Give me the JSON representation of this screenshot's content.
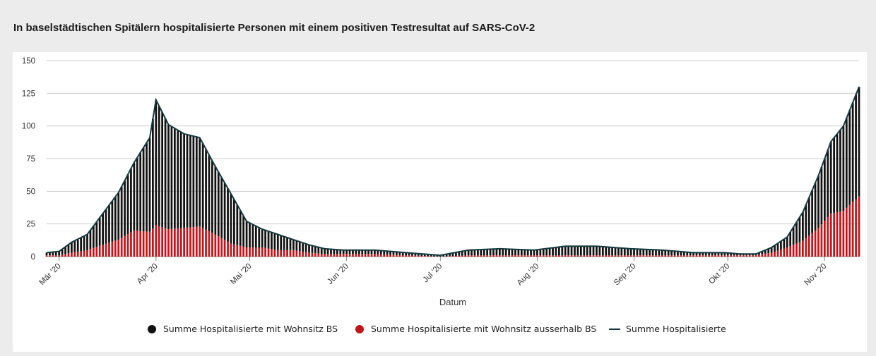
{
  "title": "In baselstädtischen Spitälern hospitalisierte Personen mit einem positiven Testresultat auf SARS-CoV-2",
  "chart_data": {
    "type": "bar",
    "stacked": true,
    "title": "In baselstädtischen Spitälern hospitalisierte Personen mit einem positiven Testresultat auf SARS-CoV-2",
    "xlabel": "Datum",
    "ylabel": "",
    "ylim": [
      0,
      150
    ],
    "yticks": [
      0,
      25,
      50,
      75,
      100,
      125,
      150
    ],
    "xlim": [
      "2020-02-26",
      "2020-11-12"
    ],
    "xticks": [
      {
        "date": "2020-03-01",
        "label": "Mär '20"
      },
      {
        "date": "2020-04-01",
        "label": "Apr '20"
      },
      {
        "date": "2020-05-01",
        "label": "Mai '20"
      },
      {
        "date": "2020-06-01",
        "label": "Jun '20"
      },
      {
        "date": "2020-07-01",
        "label": "Jul '20"
      },
      {
        "date": "2020-08-01",
        "label": "Aug '20"
      },
      {
        "date": "2020-09-01",
        "label": "Sep '20"
      },
      {
        "date": "2020-10-01",
        "label": "Okt '20"
      },
      {
        "date": "2020-11-01",
        "label": "Nov '20"
      }
    ],
    "grid": true,
    "legend_position": "bottom",
    "colors": {
      "bs": "#111111",
      "outside": "#c0151a",
      "total": "#15393f",
      "grid": "#cccccc"
    },
    "series": [
      {
        "name": "Summe Hospitalisierte mit Wohnsitz BS",
        "marker": "circle",
        "color": "#111111",
        "points": [
          [
            "2020-02-26",
            2
          ],
          [
            "2020-03-01",
            3
          ],
          [
            "2020-03-05",
            8
          ],
          [
            "2020-03-10",
            12
          ],
          [
            "2020-03-15",
            24
          ],
          [
            "2020-03-20",
            36
          ],
          [
            "2020-03-25",
            52
          ],
          [
            "2020-03-30",
            72
          ],
          [
            "2020-04-01",
            96
          ],
          [
            "2020-04-05",
            80
          ],
          [
            "2020-04-10",
            72
          ],
          [
            "2020-04-15",
            68
          ],
          [
            "2020-04-20",
            52
          ],
          [
            "2020-04-25",
            38
          ],
          [
            "2020-04-30",
            20
          ],
          [
            "2020-05-05",
            14
          ],
          [
            "2020-05-10",
            12
          ],
          [
            "2020-05-15",
            8
          ],
          [
            "2020-05-20",
            6
          ],
          [
            "2020-05-25",
            4
          ],
          [
            "2020-05-31",
            3
          ],
          [
            "2020-06-10",
            3
          ],
          [
            "2020-06-20",
            2
          ],
          [
            "2020-07-01",
            1
          ],
          [
            "2020-07-10",
            4
          ],
          [
            "2020-07-20",
            5
          ],
          [
            "2020-07-31",
            4
          ],
          [
            "2020-08-10",
            7
          ],
          [
            "2020-08-20",
            7
          ],
          [
            "2020-08-31",
            5
          ],
          [
            "2020-09-10",
            4
          ],
          [
            "2020-09-20",
            2
          ],
          [
            "2020-09-30",
            2
          ],
          [
            "2020-10-05",
            1
          ],
          [
            "2020-10-10",
            1
          ],
          [
            "2020-10-15",
            4
          ],
          [
            "2020-10-20",
            8
          ],
          [
            "2020-10-25",
            22
          ],
          [
            "2020-10-30",
            40
          ],
          [
            "2020-11-03",
            55
          ],
          [
            "2020-11-07",
            65
          ],
          [
            "2020-11-10",
            76
          ],
          [
            "2020-11-12",
            84
          ]
        ]
      },
      {
        "name": "Summe Hospitalisierte mit Wohnsitz ausserhalb BS",
        "marker": "circle",
        "color": "#c0151a",
        "points": [
          [
            "2020-02-26",
            1
          ],
          [
            "2020-03-01",
            1
          ],
          [
            "2020-03-05",
            3
          ],
          [
            "2020-03-10",
            5
          ],
          [
            "2020-03-15",
            9
          ],
          [
            "2020-03-20",
            13
          ],
          [
            "2020-03-25",
            20
          ],
          [
            "2020-03-30",
            19
          ],
          [
            "2020-04-01",
            24
          ],
          [
            "2020-04-05",
            21
          ],
          [
            "2020-04-10",
            22
          ],
          [
            "2020-04-15",
            23
          ],
          [
            "2020-04-20",
            17
          ],
          [
            "2020-04-25",
            10
          ],
          [
            "2020-04-30",
            7
          ],
          [
            "2020-05-05",
            7
          ],
          [
            "2020-05-10",
            5
          ],
          [
            "2020-05-15",
            5
          ],
          [
            "2020-05-20",
            3
          ],
          [
            "2020-05-25",
            2
          ],
          [
            "2020-05-31",
            2
          ],
          [
            "2020-06-10",
            2
          ],
          [
            "2020-06-20",
            1
          ],
          [
            "2020-07-01",
            0
          ],
          [
            "2020-07-10",
            1
          ],
          [
            "2020-07-20",
            1
          ],
          [
            "2020-07-31",
            1
          ],
          [
            "2020-08-10",
            1
          ],
          [
            "2020-08-20",
            1
          ],
          [
            "2020-08-31",
            1
          ],
          [
            "2020-09-10",
            1
          ],
          [
            "2020-09-20",
            1
          ],
          [
            "2020-09-30",
            1
          ],
          [
            "2020-10-05",
            1
          ],
          [
            "2020-10-10",
            1
          ],
          [
            "2020-10-15",
            3
          ],
          [
            "2020-10-20",
            7
          ],
          [
            "2020-10-25",
            12
          ],
          [
            "2020-10-30",
            22
          ],
          [
            "2020-11-03",
            33
          ],
          [
            "2020-11-07",
            35
          ],
          [
            "2020-11-10",
            42
          ],
          [
            "2020-11-12",
            46
          ]
        ]
      },
      {
        "name": "Summe Hospitalisierte",
        "marker": "line",
        "color": "#15393f",
        "points": [
          [
            "2020-02-26",
            3
          ],
          [
            "2020-03-01",
            4
          ],
          [
            "2020-03-05",
            11
          ],
          [
            "2020-03-10",
            17
          ],
          [
            "2020-03-15",
            33
          ],
          [
            "2020-03-20",
            49
          ],
          [
            "2020-03-25",
            72
          ],
          [
            "2020-03-30",
            91
          ],
          [
            "2020-04-01",
            120
          ],
          [
            "2020-04-05",
            101
          ],
          [
            "2020-04-10",
            94
          ],
          [
            "2020-04-15",
            91
          ],
          [
            "2020-04-20",
            69
          ],
          [
            "2020-04-25",
            48
          ],
          [
            "2020-04-30",
            27
          ],
          [
            "2020-05-05",
            21
          ],
          [
            "2020-05-10",
            17
          ],
          [
            "2020-05-15",
            13
          ],
          [
            "2020-05-20",
            9
          ],
          [
            "2020-05-25",
            6
          ],
          [
            "2020-05-31",
            5
          ],
          [
            "2020-06-10",
            5
          ],
          [
            "2020-06-20",
            3
          ],
          [
            "2020-07-01",
            1
          ],
          [
            "2020-07-10",
            5
          ],
          [
            "2020-07-20",
            6
          ],
          [
            "2020-07-31",
            5
          ],
          [
            "2020-08-10",
            8
          ],
          [
            "2020-08-20",
            8
          ],
          [
            "2020-08-31",
            6
          ],
          [
            "2020-09-10",
            5
          ],
          [
            "2020-09-20",
            3
          ],
          [
            "2020-09-30",
            3
          ],
          [
            "2020-10-05",
            2
          ],
          [
            "2020-10-10",
            2
          ],
          [
            "2020-10-15",
            7
          ],
          [
            "2020-10-20",
            15
          ],
          [
            "2020-10-25",
            34
          ],
          [
            "2020-10-30",
            62
          ],
          [
            "2020-11-03",
            88
          ],
          [
            "2020-11-07",
            100
          ],
          [
            "2020-11-10",
            118
          ],
          [
            "2020-11-12",
            130
          ]
        ]
      }
    ]
  }
}
